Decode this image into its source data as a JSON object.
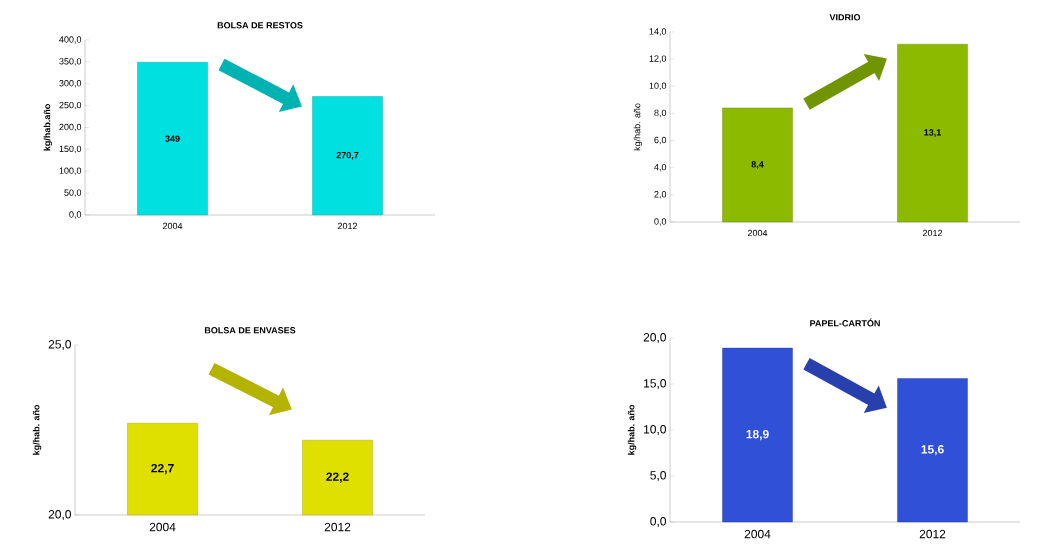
{
  "chart_data": [
    {
      "type": "bar",
      "title": "BOLSA DE RESTOS",
      "ylabel": "kg/hab.año",
      "categories": [
        "2004",
        "2012"
      ],
      "values": [
        349,
        270.7
      ],
      "value_labels": [
        "349",
        "270,7"
      ],
      "color": "#00e0e0",
      "ylim": [
        0,
        400
      ],
      "yticks": [
        {
          "value": 0,
          "label": "0,0"
        },
        {
          "value": 50,
          "label": "50,0"
        },
        {
          "value": 100,
          "label": "100,0"
        },
        {
          "value": 150,
          "label": "150,0"
        },
        {
          "value": 200,
          "label": "200,0"
        },
        {
          "value": 250,
          "label": "250,0"
        },
        {
          "value": 300,
          "label": "300,0"
        },
        {
          "value": 350,
          "label": "350,0"
        },
        {
          "value": 400,
          "label": "400,0"
        }
      ]
    },
    {
      "type": "bar",
      "title": "VIDRIO",
      "ylabel": "kg/hab. año",
      "categories": [
        "2004",
        "2012"
      ],
      "values": [
        8.4,
        13.1
      ],
      "value_labels": [
        "8,4",
        "13,1"
      ],
      "color": "#8cba00",
      "ylim": [
        0,
        14
      ],
      "yticks": [
        {
          "value": 0,
          "label": "0,0"
        },
        {
          "value": 2,
          "label": "2,0"
        },
        {
          "value": 4,
          "label": "4,0"
        },
        {
          "value": 6,
          "label": "6,0"
        },
        {
          "value": 8,
          "label": "8,0"
        },
        {
          "value": 10,
          "label": "10,0"
        },
        {
          "value": 12,
          "label": "12,0"
        },
        {
          "value": 14,
          "label": "14,0"
        }
      ]
    },
    {
      "type": "bar",
      "title": "BOLSA DE ENVASES",
      "ylabel": "kg/hab. año",
      "categories": [
        "2004",
        "2012"
      ],
      "values": [
        22.7,
        22.2
      ],
      "value_labels": [
        "22,7",
        "22,2"
      ],
      "color": "#e0e000",
      "ylim": [
        20,
        25
      ],
      "yticks": [
        {
          "value": 20,
          "label": "20,0"
        },
        {
          "value": 25,
          "label": "25,0"
        }
      ]
    },
    {
      "type": "bar",
      "title": "PAPEL-CARTÓN",
      "ylabel": "kg/hab. año",
      "categories": [
        "2004",
        "2012"
      ],
      "values": [
        18.9,
        15.6
      ],
      "value_labels": [
        "18,9",
        "15,6"
      ],
      "color": "#3050d8",
      "ylim": [
        0,
        20
      ],
      "yticks": [
        {
          "value": 0,
          "label": "0,0"
        },
        {
          "value": 5,
          "label": "5,0"
        },
        {
          "value": 10,
          "label": "10,0"
        },
        {
          "value": 15,
          "label": "15,0"
        },
        {
          "value": 20,
          "label": "20,0"
        }
      ]
    }
  ]
}
